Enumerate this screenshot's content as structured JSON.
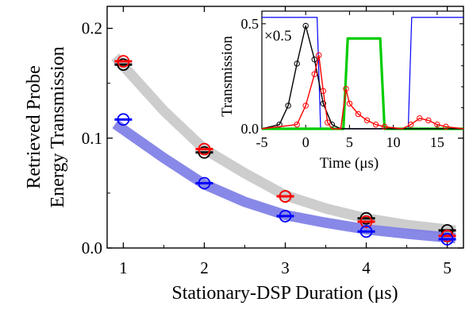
{
  "chart_data": [
    {
      "type": "scatter",
      "xlabel": "Stationary-DSP Duration (μs)",
      "ylabel_line1": "Retrieved Probe",
      "ylabel_line2": "Energy Transmission",
      "xlim": [
        0.8,
        5.2
      ],
      "ylim": [
        0.0,
        0.22
      ],
      "xticks": [
        "1",
        "2",
        "3",
        "4",
        "5"
      ],
      "yticks": [
        "0.0",
        "0.1",
        "0.2"
      ],
      "series": [
        {
          "color": "#000000",
          "x": [
            1,
            2,
            3,
            4,
            5
          ],
          "y": [
            0.167,
            0.087,
            0.047,
            0.027,
            0.016
          ]
        },
        {
          "color": "#ff0000",
          "x": [
            1,
            2,
            3,
            4,
            5
          ],
          "y": [
            0.17,
            0.09,
            0.047,
            0.024,
            0.011
          ]
        },
        {
          "color": "#0000ff",
          "x": [
            1,
            2,
            3,
            4,
            5
          ],
          "y": [
            0.117,
            0.059,
            0.029,
            0.015,
            0.008
          ]
        }
      ],
      "fit_bands": [
        {
          "color": "#c8c8c8",
          "x": [
            0.9,
            1.5,
            2,
            2.5,
            3,
            3.5,
            4,
            4.5,
            5.1
          ],
          "y": [
            0.174,
            0.125,
            0.09,
            0.068,
            0.048,
            0.036,
            0.027,
            0.021,
            0.016
          ]
        },
        {
          "color": "#7b7be6",
          "x": [
            0.9,
            1.5,
            2,
            2.5,
            3,
            3.5,
            4,
            4.5,
            5.1
          ],
          "y": [
            0.113,
            0.082,
            0.058,
            0.042,
            0.03,
            0.023,
            0.017,
            0.013,
            0.009
          ]
        }
      ]
    },
    {
      "type": "line",
      "xlabel": "Time (μs)",
      "ylabel": "Transmission",
      "xlim": [
        -5,
        18
      ],
      "ylim": [
        0.0,
        0.56
      ],
      "xticks": [
        "-5",
        "0",
        "5",
        "10",
        "15"
      ],
      "yticks": [
        "0.0",
        "0.5"
      ],
      "annotation": "×0.5",
      "series": [
        {
          "color": "#0000ff",
          "x": [
            -5,
            1.3,
            1.7,
            11.7,
            12.1,
            18
          ],
          "y": [
            0.53,
            0.53,
            0.0,
            0.0,
            0.53,
            0.53
          ]
        },
        {
          "color": "#00cc00",
          "x": [
            -5,
            4.3,
            4.8,
            8.5,
            9.0,
            18
          ],
          "y": [
            0.0,
            0.0,
            0.43,
            0.43,
            0.0,
            0.0
          ]
        },
        {
          "color": "#000000",
          "x": [
            -5,
            -3,
            -2,
            -1,
            0,
            1,
            2,
            3,
            4,
            5,
            18
          ],
          "y": [
            0.0,
            0.02,
            0.11,
            0.31,
            0.49,
            0.33,
            0.12,
            0.02,
            0.0,
            0.0,
            0.0
          ]
        },
        {
          "color": "#ff0000",
          "x": [
            -5,
            -1,
            0,
            1,
            1.5,
            2,
            2.5,
            3,
            4,
            4.6,
            5,
            6,
            7,
            8,
            9,
            11,
            12,
            13,
            14,
            15,
            16,
            18
          ],
          "y": [
            0.0,
            0.02,
            0.11,
            0.26,
            0.35,
            0.18,
            0.03,
            0.0,
            0.0,
            0.19,
            0.12,
            0.07,
            0.04,
            0.02,
            0.01,
            0.0,
            0.02,
            0.05,
            0.04,
            0.02,
            0.01,
            0.0
          ]
        }
      ]
    }
  ]
}
